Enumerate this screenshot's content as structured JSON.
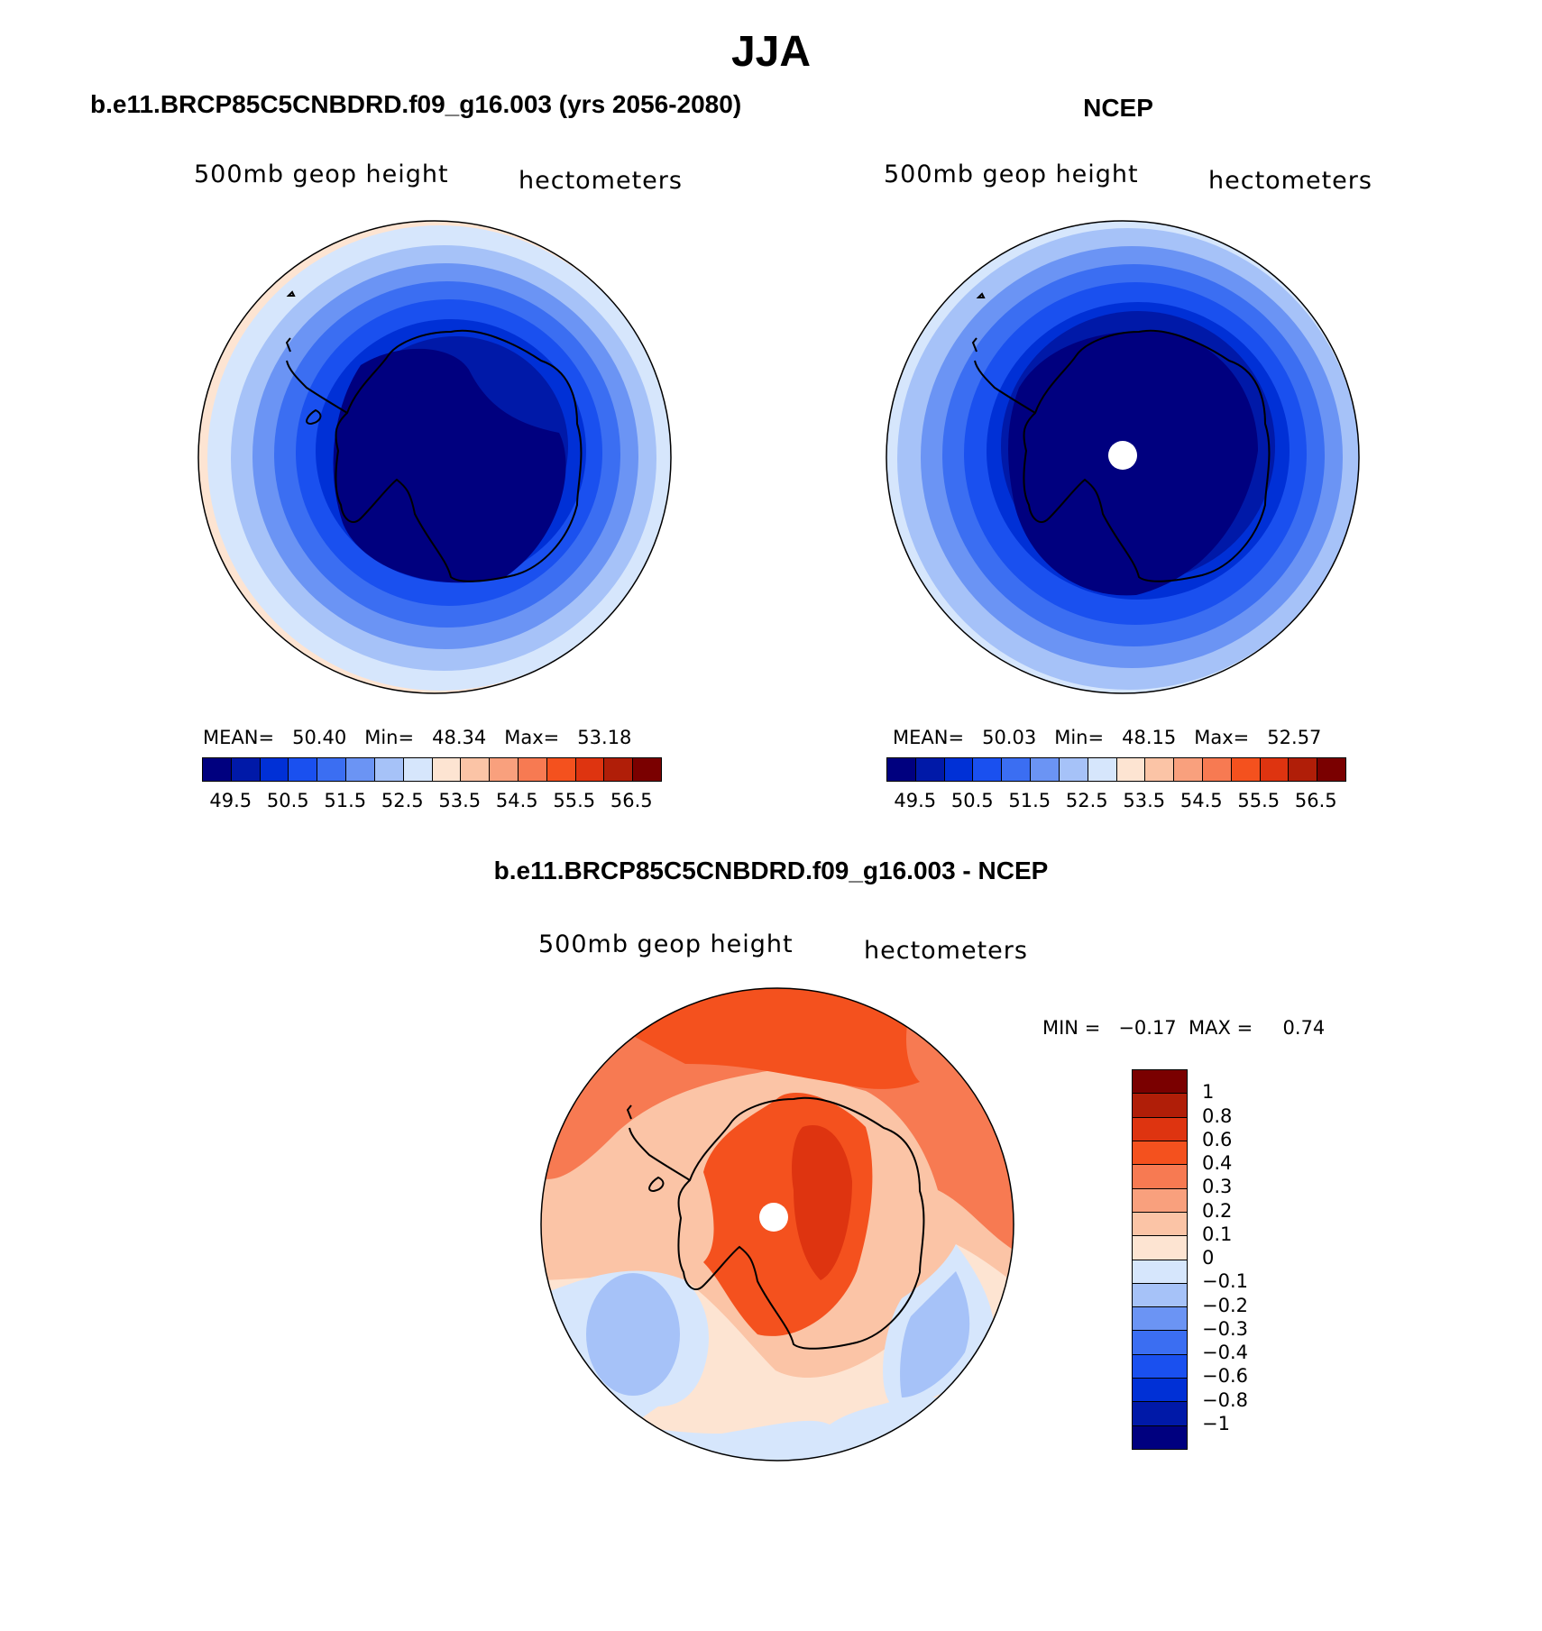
{
  "main_title": "JJA",
  "panels": {
    "left": {
      "title": "b.e11.BRCP85C5CNBDRD.f09_g16.003 (yrs 2056-2080)",
      "variable": "500mb geop height",
      "units": "hectometers",
      "stats": "MEAN=   50.40   Min=   48.34   Max=   53.18"
    },
    "right": {
      "title": "NCEP",
      "variable": "500mb geop height",
      "units": "hectometers",
      "stats": "MEAN=   50.03   Min=   48.15   Max=   52.57"
    },
    "bottom": {
      "title": "b.e11.BRCP85C5CNBDRD.f09_g16.003 - NCEP",
      "variable": "500mb geop height",
      "units": "hectometers",
      "stats": "MIN =   −0.17  MAX =     0.74"
    }
  },
  "chart_data": [
    {
      "type": "heatmap",
      "title": "b.e11.BRCP85C5CNBDRD.f09_g16.003 (yrs 2056-2080)",
      "variable": "500mb geop height",
      "units": "hectometers",
      "mean": 50.4,
      "min": 48.34,
      "max": 53.18,
      "colorbar_colors": [
        "#00007f",
        "#0019a8",
        "#0030d6",
        "#1a50ef",
        "#3b6ef2",
        "#6b94f4",
        "#a6c2f8",
        "#d6e6fc",
        "#fde4d2",
        "#fbc4a6",
        "#f9a07d",
        "#f77a52",
        "#f4511e",
        "#de3410",
        "#b01e08",
        "#7a0000"
      ],
      "colorbar_ticks": [
        "49.5",
        "50.5",
        "51.5",
        "52.5",
        "53.5",
        "54.5",
        "55.5",
        "56.5"
      ]
    },
    {
      "type": "heatmap",
      "title": "NCEP",
      "variable": "500mb geop height",
      "units": "hectometers",
      "mean": 50.03,
      "min": 48.15,
      "max": 52.57,
      "colorbar_colors": [
        "#00007f",
        "#0019a8",
        "#0030d6",
        "#1a50ef",
        "#3b6ef2",
        "#6b94f4",
        "#a6c2f8",
        "#d6e6fc",
        "#fde4d2",
        "#fbc4a6",
        "#f9a07d",
        "#f77a52",
        "#f4511e",
        "#de3410",
        "#b01e08",
        "#7a0000"
      ],
      "colorbar_ticks": [
        "49.5",
        "50.5",
        "51.5",
        "52.5",
        "53.5",
        "54.5",
        "55.5",
        "56.5"
      ]
    },
    {
      "type": "heatmap",
      "title": "b.e11.BRCP85C5CNBDRD.f09_g16.003 - NCEP",
      "variable": "500mb geop height",
      "units": "hectometers",
      "min": -0.17,
      "max": 0.74,
      "colorbar_colors": [
        "#7a0000",
        "#b01e08",
        "#de3410",
        "#f4511e",
        "#f77a52",
        "#f9a07d",
        "#fbc4a6",
        "#fde4d2",
        "#d6e6fc",
        "#a6c2f8",
        "#6b94f4",
        "#3b6ef2",
        "#1a50ef",
        "#0030d6",
        "#0019a8",
        "#00007f"
      ],
      "colorbar_ticks": [
        "1",
        "0.8",
        "0.6",
        "0.4",
        "0.3",
        "0.2",
        "0.1",
        "0",
        "−0.1",
        "−0.2",
        "−0.3",
        "−0.4",
        "−0.6",
        "−0.8",
        "−1"
      ]
    }
  ]
}
